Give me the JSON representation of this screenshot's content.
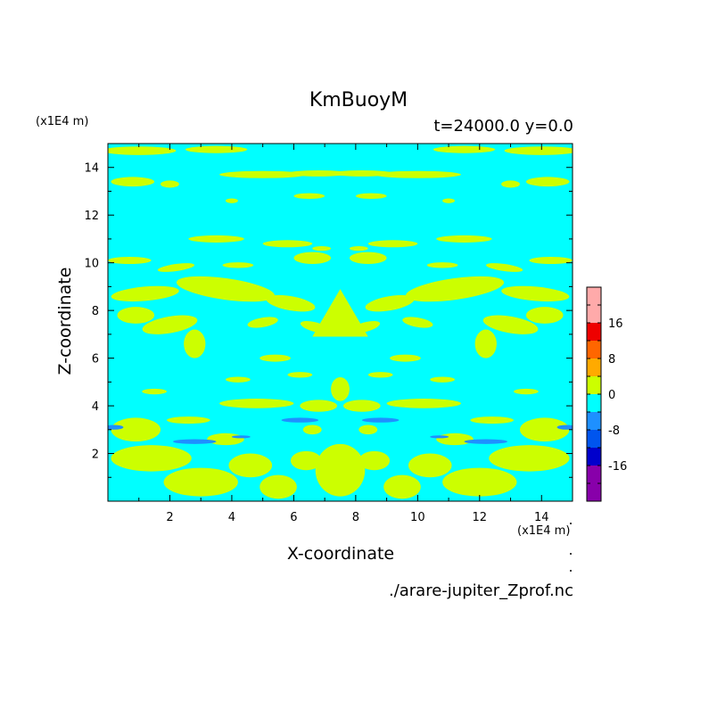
{
  "chart_data": {
    "type": "heatmap",
    "title": "KmBuoyM",
    "info": "t=24000.0 y=0.0",
    "xlabel": "X-coordinate",
    "ylabel": "Z-coordinate",
    "x_scale_note": "(x1E4 m)",
    "y_scale_note": "(x1E4 m)",
    "source": "./arare-jupiter_Zprof.nc",
    "xlim": [
      0,
      15
    ],
    "ylim": [
      0,
      15
    ],
    "x_ticks": [
      2,
      4,
      6,
      8,
      10,
      12,
      14
    ],
    "y_ticks": [
      2,
      4,
      6,
      8,
      10,
      12,
      14
    ],
    "colorbar": {
      "levels": [
        -24,
        -20,
        -16,
        -12,
        -8,
        -4,
        0,
        4,
        8,
        12,
        16,
        20,
        24
      ],
      "tick_values": [
        -16,
        -8,
        0,
        8,
        16
      ],
      "tick_labels": [
        "-16",
        "-8",
        "0",
        "8",
        "16"
      ],
      "colors": [
        "#8800aa",
        "#0000cc",
        "#0055ee",
        "#1e90ff",
        "#00ffff",
        "#ccff00",
        "#ffaa00",
        "#ff6600",
        "#ee0000",
        "#ffaaaa"
      ]
    },
    "dominant_bands": [
      {
        "range": [
          -4,
          0
        ],
        "color": "#00ffff",
        "note": "background"
      },
      {
        "range": [
          0,
          4
        ],
        "color": "#ccff00",
        "note": "patches"
      },
      {
        "range": [
          -8,
          -4
        ],
        "color": "#1e90ff",
        "note": "small patches near z≈2.5–3.5"
      }
    ]
  }
}
